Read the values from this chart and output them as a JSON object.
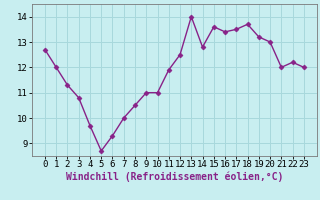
{
  "x": [
    0,
    1,
    2,
    3,
    4,
    5,
    6,
    7,
    8,
    9,
    10,
    11,
    12,
    13,
    14,
    15,
    16,
    17,
    18,
    19,
    20,
    21,
    22,
    23
  ],
  "y": [
    12.7,
    12.0,
    11.3,
    10.8,
    9.7,
    8.7,
    9.3,
    10.0,
    10.5,
    11.0,
    11.0,
    11.9,
    12.5,
    14.0,
    12.8,
    13.6,
    13.4,
    13.5,
    13.7,
    13.2,
    13.0,
    12.0,
    12.2,
    12.0
  ],
  "line_color": "#882288",
  "marker": "D",
  "marker_size": 2.5,
  "bg_color": "#c8eef0",
  "grid_color": "#a8d8dc",
  "xlabel": "Windchill (Refroidissement éolien,°C)",
  "ylim": [
    8.5,
    14.5
  ],
  "yticks": [
    9,
    10,
    11,
    12,
    13,
    14
  ],
  "xticks": [
    0,
    1,
    2,
    3,
    4,
    5,
    6,
    7,
    8,
    9,
    10,
    11,
    12,
    13,
    14,
    15,
    16,
    17,
    18,
    19,
    20,
    21,
    22,
    23
  ],
  "xlabel_fontsize": 7,
  "tick_fontsize": 6.5,
  "line_width": 1.0,
  "spine_color": "#7a7a7a",
  "label_color": "#882288"
}
